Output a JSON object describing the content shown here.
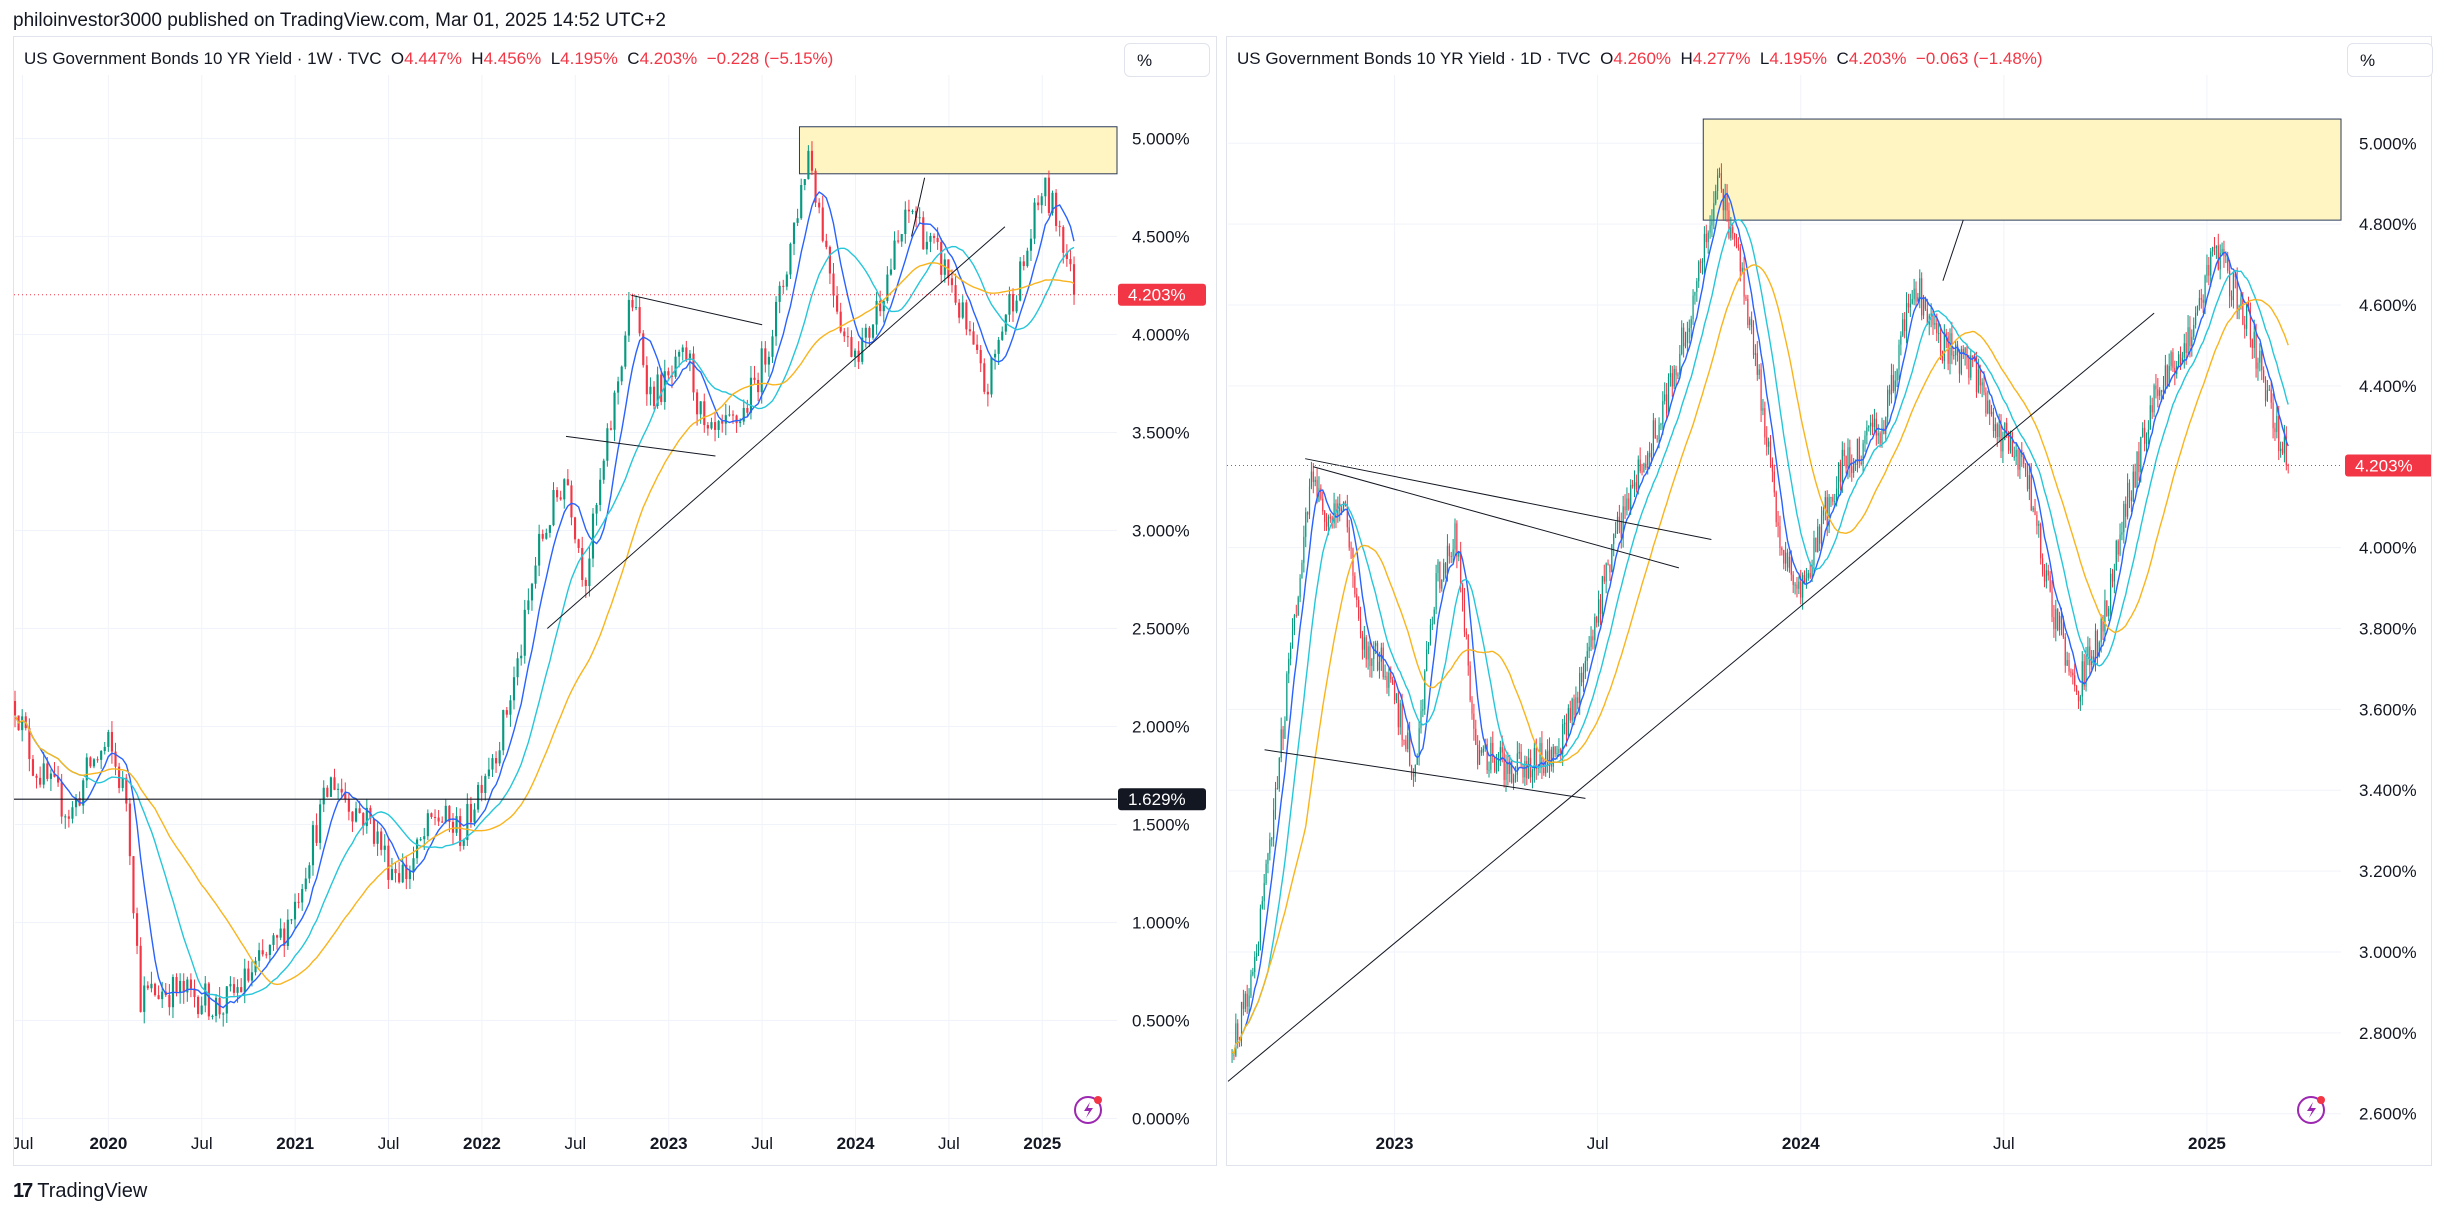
{
  "header": {
    "text": "philoinvestor3000 published on TradingView.com, Mar 01, 2025 14:52 UTC+2"
  },
  "footer": {
    "logo": "17",
    "brand": "TradingView"
  },
  "colors": {
    "up": "#089981",
    "down": "#f23645",
    "ma_fast": "#2962ff",
    "ma_mid": "#26c6da",
    "ma_slow": "#f9b41d",
    "zone": "#fff5c2",
    "trend": "#131722",
    "level": "#131722"
  },
  "chart_data": [
    {
      "type": "candlestick",
      "title": "US Government Bonds 10 YR Yield · 1W · TVC",
      "ohlc_labels": {
        "o_key": "O",
        "o": "4.447%",
        "h_key": "H",
        "h": "4.456%",
        "l_key": "L",
        "l": "4.195%",
        "c_key": "C",
        "c": "4.203%",
        "change": "−0.228 (−5.15%)"
      },
      "scale_button": "%",
      "ylim": [
        -0.12,
        5.12
      ],
      "y_ticks": [
        {
          "v": 0.0,
          "label": "0.000%"
        },
        {
          "v": 0.5,
          "label": "0.500%"
        },
        {
          "v": 1.0,
          "label": "1.000%"
        },
        {
          "v": 1.5,
          "label": "1.500%"
        },
        {
          "v": 2.0,
          "label": "2.000%"
        },
        {
          "v": 2.5,
          "label": "2.500%"
        },
        {
          "v": 3.0,
          "label": "3.000%"
        },
        {
          "v": 3.5,
          "label": "3.500%"
        },
        {
          "v": 4.0,
          "label": "4.000%"
        },
        {
          "v": 4.5,
          "label": "4.500%"
        },
        {
          "v": 5.0,
          "label": "5.000%"
        }
      ],
      "xlim": [
        2019.5,
        2025.4
      ],
      "x_ticks": [
        {
          "t": 2019.54,
          "label": "Jul",
          "bold": false
        },
        {
          "t": 2020.0,
          "label": "2020",
          "bold": true
        },
        {
          "t": 2020.5,
          "label": "Jul",
          "bold": false
        },
        {
          "t": 2021.0,
          "label": "2021",
          "bold": true
        },
        {
          "t": 2021.5,
          "label": "Jul",
          "bold": false
        },
        {
          "t": 2022.0,
          "label": "2022",
          "bold": true
        },
        {
          "t": 2022.5,
          "label": "Jul",
          "bold": false
        },
        {
          "t": 2023.0,
          "label": "2023",
          "bold": true
        },
        {
          "t": 2023.5,
          "label": "Jul",
          "bold": false
        },
        {
          "t": 2024.0,
          "label": "2024",
          "bold": true
        },
        {
          "t": 2024.5,
          "label": "Jul",
          "bold": false
        },
        {
          "t": 2025.0,
          "label": "2025",
          "bold": true
        }
      ],
      "price_path": [
        [
          2019.5,
          2.13
        ],
        [
          2019.6,
          1.8
        ],
        [
          2019.8,
          1.55
        ],
        [
          2019.9,
          1.8
        ],
        [
          2020.0,
          1.9
        ],
        [
          2020.1,
          1.62
        ],
        [
          2020.17,
          0.62
        ],
        [
          2020.3,
          0.66
        ],
        [
          2020.5,
          0.62
        ],
        [
          2020.6,
          0.56
        ],
        [
          2020.75,
          0.72
        ],
        [
          2020.9,
          0.88
        ],
        [
          2021.0,
          1.1
        ],
        [
          2021.1,
          1.45
        ],
        [
          2021.2,
          1.74
        ],
        [
          2021.3,
          1.6
        ],
        [
          2021.4,
          1.52
        ],
        [
          2021.5,
          1.3
        ],
        [
          2021.6,
          1.25
        ],
        [
          2021.75,
          1.55
        ],
        [
          2021.9,
          1.45
        ],
        [
          2022.0,
          1.75
        ],
        [
          2022.1,
          1.95
        ],
        [
          2022.2,
          2.35
        ],
        [
          2022.3,
          2.9
        ],
        [
          2022.45,
          3.3
        ],
        [
          2022.55,
          2.75
        ],
        [
          2022.7,
          3.6
        ],
        [
          2022.8,
          4.2
        ],
        [
          2022.9,
          3.7
        ],
        [
          2023.0,
          3.75
        ],
        [
          2023.1,
          3.9
        ],
        [
          2023.2,
          3.45
        ],
        [
          2023.3,
          3.5
        ],
        [
          2023.4,
          3.6
        ],
        [
          2023.5,
          3.85
        ],
        [
          2023.6,
          4.2
        ],
        [
          2023.75,
          4.95
        ],
        [
          2023.85,
          4.4
        ],
        [
          2023.95,
          3.95
        ],
        [
          2024.05,
          3.95
        ],
        [
          2024.15,
          4.25
        ],
        [
          2024.3,
          4.65
        ],
        [
          2024.4,
          4.45
        ],
        [
          2024.5,
          4.3
        ],
        [
          2024.6,
          4.0
        ],
        [
          2024.7,
          3.7
        ],
        [
          2024.8,
          4.1
        ],
        [
          2024.9,
          4.35
        ],
        [
          2025.0,
          4.75
        ],
        [
          2025.1,
          4.55
        ],
        [
          2025.17,
          4.2
        ]
      ],
      "ma_periods": [
        8,
        20,
        40
      ],
      "last_price": {
        "v": 4.203,
        "label": "4.203%"
      },
      "level": {
        "v": 1.629,
        "label": "1.629%"
      },
      "zone": {
        "t0": 2023.7,
        "t1": 2025.4,
        "v0": 4.82,
        "v1": 5.06
      },
      "trendlines": [
        {
          "t0": 2022.35,
          "v0": 2.5,
          "t1": 2024.8,
          "v1": 4.55
        },
        {
          "t0": 2022.8,
          "v0": 4.2,
          "t1": 2023.5,
          "v1": 4.05
        },
        {
          "t0": 2022.45,
          "v0": 3.48,
          "t1": 2023.25,
          "v1": 3.38
        },
        {
          "t0": 2024.3,
          "v0": 4.5,
          "t1": 2024.37,
          "v1": 4.8
        }
      ]
    },
    {
      "type": "candlestick",
      "title": "US Government Bonds 10 YR Yield · 1D · TVC",
      "ohlc_labels": {
        "o_key": "O",
        "o": "4.260%",
        "h_key": "H",
        "h": "4.277%",
        "l_key": "L",
        "l": "4.195%",
        "c_key": "C",
        "c": "4.203%",
        "change": "−0.063 (−1.48%)"
      },
      "scale_button": "%",
      "ylim": [
        2.53,
        5.07
      ],
      "y_ticks": [
        {
          "v": 2.6,
          "label": "2.600%"
        },
        {
          "v": 2.8,
          "label": "2.800%"
        },
        {
          "v": 3.0,
          "label": "3.000%"
        },
        {
          "v": 3.2,
          "label": "3.200%"
        },
        {
          "v": 3.4,
          "label": "3.400%"
        },
        {
          "v": 3.6,
          "label": "3.600%"
        },
        {
          "v": 3.8,
          "label": "3.800%"
        },
        {
          "v": 4.0,
          "label": "4.000%"
        },
        {
          "v": 4.4,
          "label": "4.400%"
        },
        {
          "v": 4.6,
          "label": "4.600%"
        },
        {
          "v": 4.8,
          "label": "4.800%"
        },
        {
          "v": 5.0,
          "label": "5.000%"
        }
      ],
      "xlim": [
        2022.59,
        2025.33
      ],
      "x_ticks": [
        {
          "t": 2023.0,
          "label": "2023",
          "bold": true
        },
        {
          "t": 2023.5,
          "label": "Jul",
          "bold": false
        },
        {
          "t": 2024.0,
          "label": "2024",
          "bold": true
        },
        {
          "t": 2024.5,
          "label": "Jul",
          "bold": false
        },
        {
          "t": 2025.0,
          "label": "2025",
          "bold": true
        }
      ],
      "price_path": [
        [
          2022.6,
          2.75
        ],
        [
          2022.65,
          2.95
        ],
        [
          2022.7,
          3.3
        ],
        [
          2022.75,
          3.8
        ],
        [
          2022.8,
          4.2
        ],
        [
          2022.83,
          4.05
        ],
        [
          2022.88,
          4.1
        ],
        [
          2022.92,
          3.75
        ],
        [
          2022.98,
          3.7
        ],
        [
          2023.05,
          3.45
        ],
        [
          2023.1,
          3.9
        ],
        [
          2023.15,
          4.05
        ],
        [
          2023.2,
          3.5
        ],
        [
          2023.3,
          3.45
        ],
        [
          2023.4,
          3.5
        ],
        [
          2023.45,
          3.65
        ],
        [
          2023.5,
          3.85
        ],
        [
          2023.58,
          4.15
        ],
        [
          2023.65,
          4.3
        ],
        [
          2023.72,
          4.55
        ],
        [
          2023.8,
          4.9
        ],
        [
          2023.85,
          4.7
        ],
        [
          2023.9,
          4.4
        ],
        [
          2023.95,
          4.0
        ],
        [
          2024.0,
          3.9
        ],
        [
          2024.1,
          4.2
        ],
        [
          2024.2,
          4.3
        ],
        [
          2024.28,
          4.65
        ],
        [
          2024.35,
          4.5
        ],
        [
          2024.42,
          4.45
        ],
        [
          2024.48,
          4.3
        ],
        [
          2024.55,
          4.2
        ],
        [
          2024.62,
          3.85
        ],
        [
          2024.68,
          3.65
        ],
        [
          2024.74,
          3.8
        ],
        [
          2024.8,
          4.1
        ],
        [
          2024.88,
          4.4
        ],
        [
          2024.95,
          4.5
        ],
        [
          2025.02,
          4.75
        ],
        [
          2025.1,
          4.55
        ],
        [
          2025.2,
          4.2
        ]
      ],
      "ma_periods": [
        8,
        20,
        40
      ],
      "last_price": {
        "v": 4.203,
        "label": "4.203%"
      },
      "zone": {
        "t0": 2023.76,
        "t1": 2025.33,
        "v0": 4.81,
        "v1": 5.06
      },
      "trendlines": [
        {
          "t0": 2022.59,
          "v0": 2.68,
          "t1": 2024.87,
          "v1": 4.58
        },
        {
          "t0": 2022.78,
          "v0": 4.22,
          "t1": 2023.78,
          "v1": 4.02
        },
        {
          "t0": 2022.8,
          "v0": 4.2,
          "t1": 2023.7,
          "v1": 3.95
        },
        {
          "t0": 2022.68,
          "v0": 3.5,
          "t1": 2023.47,
          "v1": 3.38
        },
        {
          "t0": 2024.35,
          "v0": 4.66,
          "t1": 2024.4,
          "v1": 4.81
        }
      ]
    }
  ]
}
